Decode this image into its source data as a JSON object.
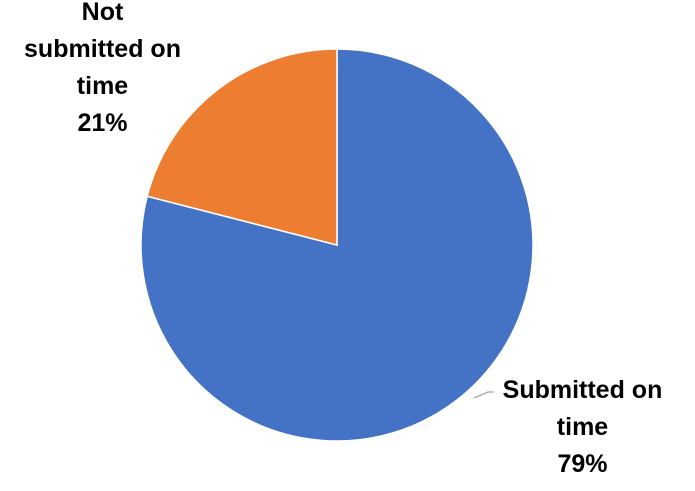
{
  "chart_data": {
    "type": "pie",
    "title": "",
    "slices": [
      {
        "label_lines": [
          "Submitted on",
          "time"
        ],
        "value": 79,
        "value_label": "79%",
        "color": "#4472C4"
      },
      {
        "label_lines": [
          "Not",
          "submitted on",
          "time"
        ],
        "value": 21,
        "value_label": "21%",
        "color": "#ED7D31"
      }
    ],
    "start_angle_deg": 0,
    "direction": "clockwise",
    "legend": "none"
  }
}
